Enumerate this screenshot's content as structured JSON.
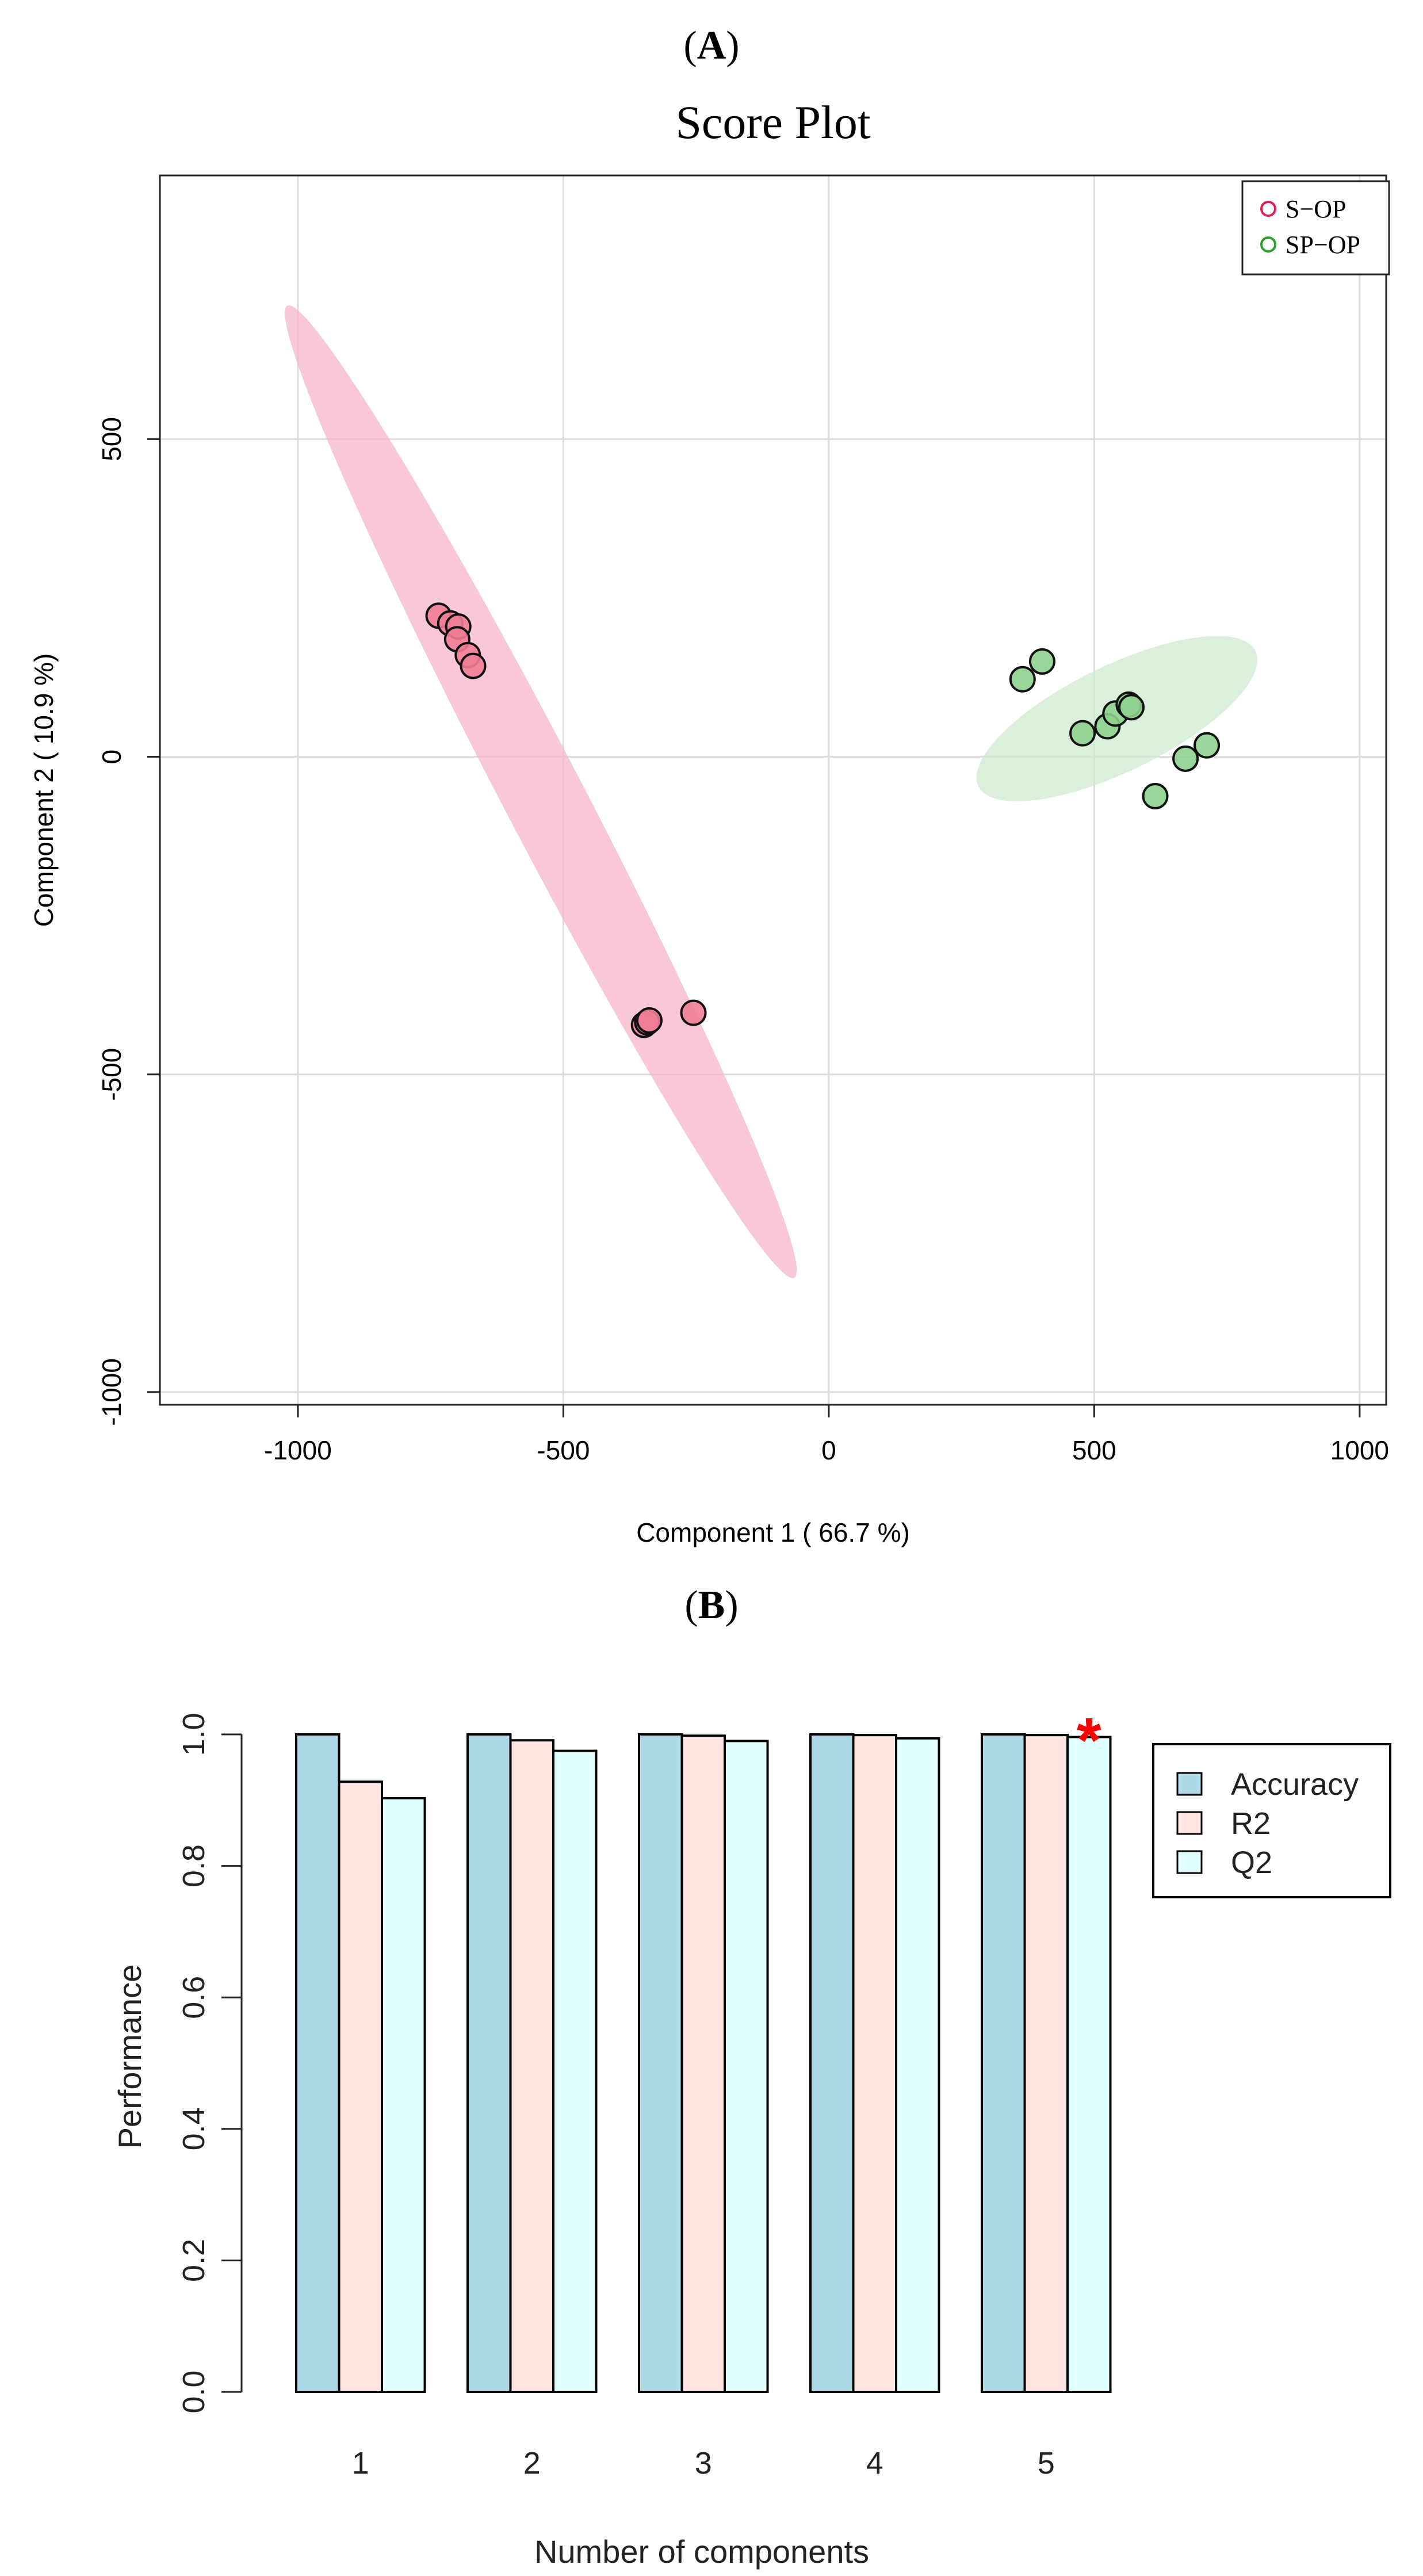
{
  "panelA": {
    "label_open": "(",
    "label_letter": "A",
    "label_close": ")",
    "chart_data": {
      "type": "scatter",
      "title": "Score Plot",
      "xlabel": "Component 1 ( 66.7 %)",
      "ylabel": "Component 2 ( 10.9 %)",
      "xlim": [
        -1260,
        1050
      ],
      "ylim": [
        -1020,
        915
      ],
      "xticks": [
        -1000,
        -500,
        0,
        500,
        1000
      ],
      "xtick_labels": [
        "-1000",
        "-500",
        "0",
        "500",
        "1000"
      ],
      "yticks": [
        -1000,
        -500,
        0,
        500
      ],
      "ytick_labels": [
        "-1000",
        "-500",
        "0",
        "500"
      ],
      "grid": true,
      "legend_position": "top-right",
      "series": [
        {
          "name": "S−OP",
          "color": "#e31a4f",
          "fill": "#f07e96",
          "ellipse_color": "#f7b6c8",
          "ellipse": {
            "x1": -1020,
            "y1": 710,
            "x2": -65,
            "y2": -820,
            "minor_semi": 70
          },
          "points": [
            {
              "x": -735,
              "y": 222
            },
            {
              "x": -713,
              "y": 210
            },
            {
              "x": -698,
              "y": 205
            },
            {
              "x": -700,
              "y": 185
            },
            {
              "x": -680,
              "y": 160
            },
            {
              "x": -670,
              "y": 143
            },
            {
              "x": -348,
              "y": -422
            },
            {
              "x": -342,
              "y": -418
            },
            {
              "x": -338,
              "y": -415
            },
            {
              "x": -255,
              "y": -403
            }
          ]
        },
        {
          "name": "SP−OP",
          "color": "#2ca02c",
          "fill": "#8fd18f",
          "ellipse_color": "#cdebcd",
          "ellipse": {
            "cx": 543,
            "cy": 60,
            "major_semi": 268,
            "minor_semi": 92,
            "angle_deg": -26
          },
          "points": [
            {
              "x": 365,
              "y": 122
            },
            {
              "x": 402,
              "y": 150
            },
            {
              "x": 478,
              "y": 37
            },
            {
              "x": 525,
              "y": 48
            },
            {
              "x": 540,
              "y": 68
            },
            {
              "x": 565,
              "y": 82
            },
            {
              "x": 570,
              "y": 78
            },
            {
              "x": 615,
              "y": -62
            },
            {
              "x": 672,
              "y": -3
            },
            {
              "x": 712,
              "y": 18
            }
          ]
        }
      ]
    }
  },
  "panelB": {
    "label_open": "(",
    "label_letter": "B",
    "label_close": ")",
    "chart_data": {
      "type": "bar",
      "xlabel": "Number of components",
      "ylabel": "Performance",
      "categories": [
        "1",
        "2",
        "3",
        "4",
        "5"
      ],
      "ylim": [
        0,
        1
      ],
      "yticks": [
        0.0,
        0.2,
        0.4,
        0.6,
        0.8,
        1.0
      ],
      "ytick_labels": [
        "0.0",
        "0.2",
        "0.4",
        "0.6",
        "0.8",
        "1.0"
      ],
      "legend_position": "top-right",
      "marker": {
        "text": "*",
        "category_index": 4,
        "color": "#ff0000"
      },
      "series": [
        {
          "name": "Accuracy",
          "color": "#add8e6",
          "values": [
            1.0,
            1.0,
            1.0,
            1.0,
            1.0
          ]
        },
        {
          "name": "R2",
          "color": "#ffe4e1",
          "values": [
            0.928,
            0.991,
            0.998,
            0.999,
            0.999
          ]
        },
        {
          "name": "Q2",
          "color": "#e0ffff",
          "values": [
            0.903,
            0.975,
            0.99,
            0.994,
            0.996
          ]
        }
      ]
    }
  }
}
